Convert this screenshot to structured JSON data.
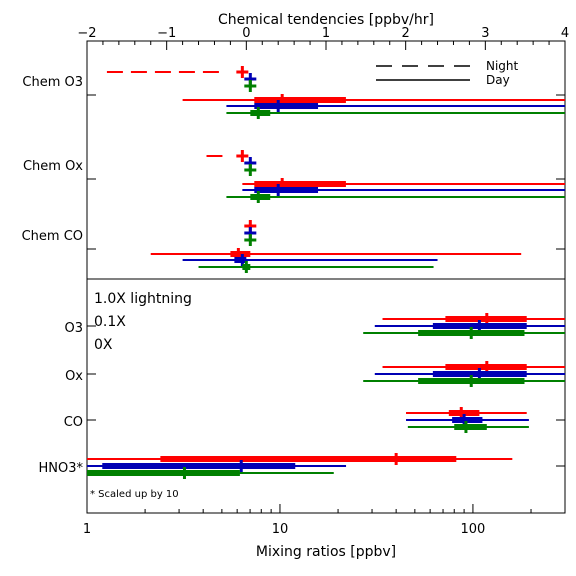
{
  "colors": {
    "lightning_1_0x": "#ff0000",
    "lightning_0_1x": "#0000b4",
    "lightning_0x": "#008000",
    "axes": "#000000"
  },
  "chart_data": {
    "type": "horizontal range plot",
    "top_axis": {
      "label": "Chemical tendencies [ppbv/hr]",
      "range": [
        -2,
        4
      ],
      "ticks": [
        -2,
        -1,
        0,
        1,
        2,
        3,
        4
      ],
      "tick_labels": [
        "−2",
        "−1",
        "0",
        "1",
        "2",
        "3",
        "4"
      ]
    },
    "bottom_axis": {
      "label": "Mixing ratios [ppbv]",
      "scale": "log",
      "range": [
        1,
        300
      ],
      "ticks": [
        1,
        10,
        100
      ],
      "tick_labels": [
        "1",
        "10",
        "100"
      ]
    },
    "line_style_legend": [
      {
        "label": "Night",
        "style": "dashed"
      },
      {
        "label": "Day",
        "style": "solid"
      }
    ],
    "series": [
      {
        "name": "1.0X lightning",
        "color_key": "lightning_1_0x"
      },
      {
        "name": "0.1X",
        "color_key": "lightning_0_1x"
      },
      {
        "name": "0X",
        "color_key": "lightning_0x"
      }
    ],
    "footnote": "* Scaled up by 10",
    "tendency_categories": [
      {
        "label": "Chem O3",
        "night": [
          {
            "series": 0,
            "min": -1.75,
            "max": -0.3,
            "median": -0.05
          },
          {
            "series": 1,
            "median": 0.05
          },
          {
            "series": 2,
            "median": 0.05
          }
        ],
        "day": [
          {
            "series": 0,
            "min": -0.8,
            "max": 4.0,
            "q1": 0.1,
            "q3": 1.25,
            "median": 0.45
          },
          {
            "series": 1,
            "min": -0.25,
            "max": 4.0,
            "q1": 0.1,
            "q3": 0.9,
            "median": 0.4
          },
          {
            "series": 2,
            "min": -0.25,
            "max": 4.0,
            "q1": 0.05,
            "q3": 0.3,
            "median": 0.15
          }
        ]
      },
      {
        "label": "Chem Ox",
        "night": [
          {
            "series": 0,
            "min": -0.5,
            "max": -0.3,
            "median": -0.05
          },
          {
            "series": 1,
            "median": 0.05
          },
          {
            "series": 2,
            "median": 0.05
          }
        ],
        "day": [
          {
            "series": 0,
            "min": -0.05,
            "max": 4.0,
            "q1": 0.1,
            "q3": 1.25,
            "median": 0.45
          },
          {
            "series": 1,
            "min": -0.05,
            "max": 4.0,
            "q1": 0.1,
            "q3": 0.9,
            "median": 0.4
          },
          {
            "series": 2,
            "min": -0.25,
            "max": 4.0,
            "q1": 0.05,
            "q3": 0.3,
            "median": 0.15
          }
        ]
      },
      {
        "label": "Chem CO",
        "night": [
          {
            "series": 0,
            "median": 0.05
          },
          {
            "series": 1,
            "median": 0.05
          },
          {
            "series": 2,
            "median": 0.05
          }
        ],
        "day": [
          {
            "series": 0,
            "min": -1.2,
            "max": 3.45,
            "q1": -0.2,
            "q3": 0.05,
            "median": -0.1
          },
          {
            "series": 1,
            "min": -0.8,
            "max": 2.4,
            "q1": -0.15,
            "q3": 0.0,
            "median": -0.05
          },
          {
            "series": 2,
            "min": -0.6,
            "max": 2.35,
            "q1": -0.05,
            "q3": 0.05,
            "median": 0.0
          }
        ]
      }
    ],
    "mixing_categories": [
      {
        "label": "O3",
        "bars": [
          {
            "series": 0,
            "min": 34,
            "max": 300,
            "q1": 72,
            "q3": 190,
            "median": 118
          },
          {
            "series": 1,
            "min": 31,
            "max": 300,
            "q1": 62,
            "q3": 190,
            "median": 108
          },
          {
            "series": 2,
            "min": 27,
            "max": 300,
            "q1": 52,
            "q3": 185,
            "median": 98
          }
        ]
      },
      {
        "label": "Ox",
        "bars": [
          {
            "series": 0,
            "min": 34,
            "max": 300,
            "q1": 72,
            "q3": 190,
            "median": 118
          },
          {
            "series": 1,
            "min": 31,
            "max": 300,
            "q1": 62,
            "q3": 190,
            "median": 108
          },
          {
            "series": 2,
            "min": 27,
            "max": 300,
            "q1": 52,
            "q3": 185,
            "median": 98
          }
        ]
      },
      {
        "label": "CO",
        "bars": [
          {
            "series": 0,
            "min": 45,
            "max": 190,
            "q1": 75,
            "q3": 108,
            "median": 87
          },
          {
            "series": 1,
            "min": 45,
            "max": 195,
            "q1": 78,
            "q3": 112,
            "median": 90
          },
          {
            "series": 2,
            "min": 46,
            "max": 195,
            "q1": 80,
            "q3": 118,
            "median": 92
          }
        ]
      },
      {
        "label": "HNO3*",
        "bars": [
          {
            "series": 0,
            "min": 1.0,
            "max": 160,
            "q1": 2.4,
            "q3": 82,
            "median": 40
          },
          {
            "series": 1,
            "min": 1.0,
            "max": 22,
            "q1": 1.2,
            "q3": 12,
            "median": 6.3
          },
          {
            "series": 2,
            "min": 1.0,
            "max": 19,
            "q1": 1.0,
            "q3": 6.2,
            "median": 3.2
          }
        ]
      }
    ]
  }
}
